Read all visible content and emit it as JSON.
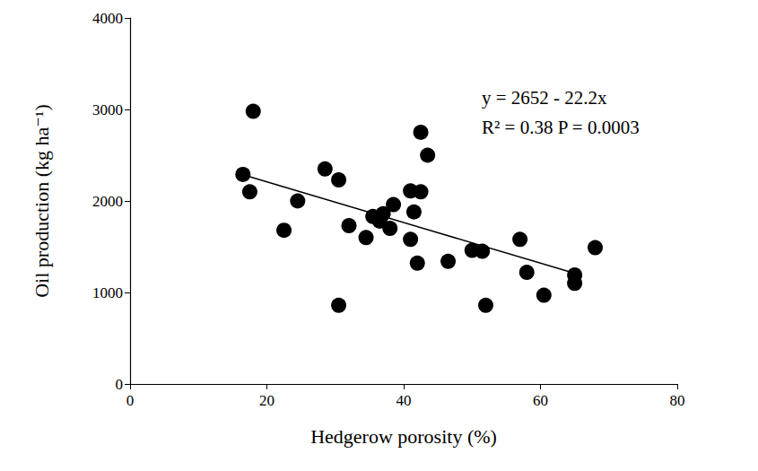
{
  "chart_data": {
    "type": "scatter",
    "x_label": "Hedgerow porosity (%)",
    "y_label": "Oil production (kg ha⁻¹)",
    "xlim": [
      0,
      80
    ],
    "xticks": [
      0,
      20,
      40,
      60,
      80
    ],
    "ylim": [
      0,
      4000
    ],
    "yticks": [
      0,
      1000,
      2000,
      3000,
      4000
    ],
    "grid": false,
    "annotations": [
      "y = 2652 - 22.2x",
      "R² = 0.38 P = 0.0003"
    ],
    "series": [
      {
        "type": "scatter",
        "color": "#000000",
        "marker": "circle",
        "x": [
          16.5,
          18,
          17.5,
          22.5,
          24.5,
          28.5,
          30.5,
          30.5,
          32,
          34.5,
          35.5,
          36.5,
          37,
          38,
          38.5,
          41,
          41,
          41.5,
          42,
          42.5,
          42.5,
          43.5,
          46.5,
          50,
          51.5,
          52,
          57,
          58,
          60.5,
          65,
          65,
          68
        ],
        "values": [
          2290,
          2980,
          2100,
          1680,
          2000,
          2350,
          2230,
          860,
          1730,
          1600,
          1830,
          1780,
          1860,
          1700,
          1960,
          2110,
          1580,
          1880,
          1320,
          2750,
          2100,
          2500,
          1340,
          1460,
          1450,
          860,
          1580,
          1220,
          970,
          1190,
          1100,
          1490
        ]
      },
      {
        "type": "line",
        "color": "#000000",
        "line_style": "solid",
        "x": [
          16.5,
          65.5
        ],
        "values": [
          2286,
          1198
        ]
      }
    ]
  }
}
